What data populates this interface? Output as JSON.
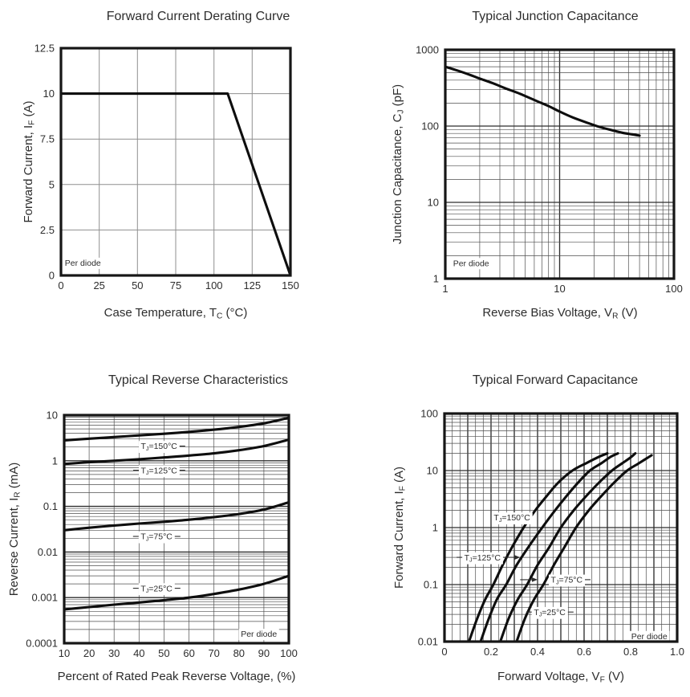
{
  "style": {
    "background": "#ffffff",
    "text_color": "#2d2d2d",
    "curve_color": "#0e0e0e",
    "frame_color": "#161616",
    "grid_minor_color": "#4f4f4f",
    "grid_major_color": "#2e2e2e",
    "grid_light_color": "#8f8f8f",
    "label_bg_color": "#ffffff"
  },
  "chart_data": [
    {
      "type": "line",
      "title": "Forward Current Derating Curve",
      "x_label": [
        [
          "t",
          "Case Temperature, T"
        ],
        [
          "s",
          "C"
        ],
        [
          "t",
          " (°C)"
        ]
      ],
      "y_label": [
        [
          "t",
          "Forward Current, I"
        ],
        [
          "s",
          "F"
        ],
        [
          "t",
          " (A)"
        ]
      ],
      "x_axis": {
        "scale": "linear",
        "min": 0,
        "max": 150,
        "light": true,
        "grid": {
          "major": 25
        },
        "ticks": [
          [
            0,
            "0"
          ],
          [
            25,
            "25"
          ],
          [
            50,
            "50"
          ],
          [
            75,
            "75"
          ],
          [
            100,
            "100"
          ],
          [
            125,
            "125"
          ],
          [
            150,
            "150"
          ]
        ]
      },
      "y_axis": {
        "scale": "linear",
        "min": 0,
        "max": 12.5,
        "light": true,
        "grid": {
          "major": 2.5
        },
        "ticks": [
          [
            12.5,
            "12.5"
          ],
          [
            10,
            "10"
          ],
          [
            7.5,
            "7.5"
          ],
          [
            5,
            "5"
          ],
          [
            2.5,
            "2.5"
          ],
          [
            0,
            "0"
          ]
        ]
      },
      "series": [
        {
          "name": "derating-curve",
          "smooth": false,
          "points": [
            [
              0,
              10
            ],
            [
              109,
              10
            ],
            [
              150,
              0
            ]
          ]
        }
      ],
      "annotations": [
        {
          "name": "per-diode-note",
          "parts": [
            [
              "t",
              "Per diode"
            ]
          ],
          "x": 2.5,
          "y": 0.7,
          "anchor": "start"
        }
      ]
    },
    {
      "type": "line",
      "title": "Typical Junction Capacitance",
      "x_label": [
        [
          "t",
          "Reverse Bias Voltage, V"
        ],
        [
          "s",
          "R"
        ],
        [
          "t",
          " (V)"
        ]
      ],
      "y_label": [
        [
          "t",
          "Junction Capacitance, C"
        ],
        [
          "s",
          "J"
        ],
        [
          "t",
          " (pF)"
        ]
      ],
      "x_axis": {
        "scale": "log",
        "min": 1,
        "max": 100,
        "ticks": [
          [
            1,
            "1"
          ],
          [
            10,
            "10"
          ],
          [
            100,
            "100"
          ]
        ]
      },
      "y_axis": {
        "scale": "log",
        "min": 1,
        "max": 1000,
        "ticks": [
          [
            1000,
            "1000"
          ],
          [
            100,
            "100"
          ],
          [
            10,
            "10"
          ],
          [
            1,
            "1"
          ]
        ]
      },
      "series": [
        {
          "name": "junction-capacitance",
          "smooth": true,
          "points": [
            [
              1,
              600
            ],
            [
              1.3,
              530
            ],
            [
              1.7,
              460
            ],
            [
              2,
              420
            ],
            [
              2.6,
              365
            ],
            [
              3.4,
              310
            ],
            [
              4.5,
              265
            ],
            [
              6,
              220
            ],
            [
              8,
              183
            ],
            [
              10,
              155
            ],
            [
              13,
              130
            ],
            [
              17,
              112
            ],
            [
              22,
              98
            ],
            [
              28,
              89
            ],
            [
              35,
              82
            ],
            [
              43,
              78
            ],
            [
              50,
              75
            ]
          ]
        }
      ],
      "annotations": [
        {
          "name": "per-diode-note",
          "parts": [
            [
              "t",
              "Per diode"
            ]
          ],
          "x": 1.17,
          "y": 1.6,
          "anchor": "start"
        }
      ]
    },
    {
      "type": "line",
      "title": "Typical Reverse Characteristics",
      "x_label": [
        [
          "t",
          "Percent of Rated Peak Reverse Voltage, (%)"
        ]
      ],
      "y_label": [
        [
          "t",
          "Reverse Current, I"
        ],
        [
          "s",
          "R"
        ],
        [
          "t",
          " (mA)"
        ]
      ],
      "x_axis": {
        "scale": "linear",
        "min": 10,
        "max": 100,
        "grid": {
          "major": 10,
          "style": "minor"
        },
        "ticks": [
          [
            10,
            "10"
          ],
          [
            20,
            "20"
          ],
          [
            30,
            "30"
          ],
          [
            40,
            "40"
          ],
          [
            50,
            "50"
          ],
          [
            60,
            "60"
          ],
          [
            70,
            "70"
          ],
          [
            80,
            "80"
          ],
          [
            90,
            "90"
          ],
          [
            100,
            "100"
          ]
        ]
      },
      "y_axis": {
        "scale": "log",
        "min": 0.0001,
        "max": 10,
        "ticks": [
          [
            10,
            "10"
          ],
          [
            1,
            "1"
          ],
          [
            0.1,
            "0.1"
          ],
          [
            0.01,
            "0.01"
          ],
          [
            0.001,
            "0.001"
          ],
          [
            0.0001,
            "0.0001"
          ]
        ]
      },
      "series": [
        {
          "name": "tj-150c",
          "smooth": true,
          "points": [
            [
              10,
              2.8
            ],
            [
              20,
              3.05
            ],
            [
              30,
              3.3
            ],
            [
              40,
              3.6
            ],
            [
              50,
              3.9
            ],
            [
              60,
              4.3
            ],
            [
              70,
              4.8
            ],
            [
              80,
              5.5
            ],
            [
              90,
              6.6
            ],
            [
              100,
              8.8
            ]
          ]
        },
        {
          "name": "tj-125c",
          "smooth": true,
          "points": [
            [
              10,
              0.85
            ],
            [
              20,
              0.93
            ],
            [
              30,
              1.0
            ],
            [
              40,
              1.08
            ],
            [
              50,
              1.18
            ],
            [
              60,
              1.3
            ],
            [
              70,
              1.45
            ],
            [
              80,
              1.7
            ],
            [
              90,
              2.1
            ],
            [
              100,
              2.9
            ]
          ]
        },
        {
          "name": "tj-75c",
          "smooth": true,
          "points": [
            [
              10,
              0.03
            ],
            [
              20,
              0.034
            ],
            [
              30,
              0.038
            ],
            [
              40,
              0.042
            ],
            [
              50,
              0.046
            ],
            [
              60,
              0.051
            ],
            [
              70,
              0.058
            ],
            [
              80,
              0.068
            ],
            [
              90,
              0.085
            ],
            [
              100,
              0.123
            ]
          ]
        },
        {
          "name": "tj-25c",
          "smooth": true,
          "points": [
            [
              10,
              0.00055
            ],
            [
              20,
              0.00062
            ],
            [
              30,
              0.0007
            ],
            [
              40,
              0.00078
            ],
            [
              50,
              0.00088
            ],
            [
              60,
              0.001
            ],
            [
              70,
              0.0012
            ],
            [
              80,
              0.0015
            ],
            [
              90,
              0.002
            ],
            [
              100,
              0.003
            ]
          ]
        }
      ],
      "annotations": [
        {
          "name": "tj-150c-label",
          "parts": [
            [
              "t",
              "T"
            ],
            [
              "s",
              "J"
            ],
            [
              "t",
              "=150°C"
            ]
          ],
          "x": 48,
          "y": 2.1,
          "anchor": "middle",
          "dash_right": true
        },
        {
          "name": "tj-125c-label",
          "parts": [
            [
              "t",
              "T"
            ],
            [
              "s",
              "J"
            ],
            [
              "t",
              "=125°C"
            ]
          ],
          "x": 48,
          "y": 0.62,
          "anchor": "middle",
          "dash_left": true,
          "dash_right": true
        },
        {
          "name": "tj-75c-label",
          "parts": [
            [
              "t",
              "T"
            ],
            [
              "s",
              "J"
            ],
            [
              "t",
              "=75°C"
            ]
          ],
          "x": 47,
          "y": 0.022,
          "anchor": "middle",
          "dash_left": true,
          "dash_right": true
        },
        {
          "name": "tj-25c-label",
          "parts": [
            [
              "t",
              "T"
            ],
            [
              "s",
              "J"
            ],
            [
              "t",
              "=25°C"
            ]
          ],
          "x": 47,
          "y": 0.0016,
          "anchor": "middle",
          "dash_left": true,
          "dash_right": true
        },
        {
          "name": "per-diode-note",
          "parts": [
            [
              "t",
              "Per diode"
            ]
          ],
          "x": 88,
          "y": 0.00016,
          "anchor": "middle"
        }
      ]
    },
    {
      "type": "line",
      "title": "Typical Forward Capacitance",
      "x_label": [
        [
          "t",
          "Forward Voltage, V"
        ],
        [
          "s",
          "F"
        ],
        [
          "t",
          " (V)"
        ]
      ],
      "y_label": [
        [
          "t",
          "Forward Current, I"
        ],
        [
          "s",
          "F"
        ],
        [
          "t",
          " (A)"
        ]
      ],
      "x_axis": {
        "scale": "linear",
        "min": 0,
        "max": 1.0,
        "grid": {
          "major": 0.1,
          "minor": 0.0333333
        },
        "ticks": [
          [
            0,
            "0"
          ],
          [
            0.2,
            "0.2"
          ],
          [
            0.4,
            "0.4"
          ],
          [
            0.6,
            "0.6"
          ],
          [
            0.8,
            "0.8"
          ],
          [
            1.0,
            "1.0"
          ]
        ]
      },
      "y_axis": {
        "scale": "log",
        "min": 0.01,
        "max": 100,
        "ticks": [
          [
            100,
            "100"
          ],
          [
            10,
            "10"
          ],
          [
            1,
            "1"
          ],
          [
            0.1,
            "0.1"
          ],
          [
            0.01,
            "0.01"
          ]
        ]
      },
      "series": [
        {
          "name": "tj-150c",
          "smooth": true,
          "points": [
            [
              0.105,
              0.01
            ],
            [
              0.14,
              0.025
            ],
            [
              0.175,
              0.055
            ],
            [
              0.21,
              0.1
            ],
            [
              0.25,
              0.22
            ],
            [
              0.29,
              0.45
            ],
            [
              0.34,
              1.0
            ],
            [
              0.39,
              2.0
            ],
            [
              0.44,
              3.6
            ],
            [
              0.49,
              6.2
            ],
            [
              0.55,
              10
            ],
            [
              0.61,
              13.5
            ],
            [
              0.665,
              17.5
            ],
            [
              0.7,
              20
            ]
          ]
        },
        {
          "name": "tj-125c",
          "smooth": true,
          "points": [
            [
              0.155,
              0.01
            ],
            [
              0.19,
              0.025
            ],
            [
              0.225,
              0.055
            ],
            [
              0.265,
              0.1
            ],
            [
              0.31,
              0.22
            ],
            [
              0.36,
              0.45
            ],
            [
              0.42,
              1.0
            ],
            [
              0.475,
              2.0
            ],
            [
              0.525,
              3.6
            ],
            [
              0.575,
              6.2
            ],
            [
              0.625,
              10
            ],
            [
              0.675,
              13.5
            ],
            [
              0.715,
              17.5
            ],
            [
              0.745,
              20
            ]
          ]
        },
        {
          "name": "tj-75c",
          "smooth": true,
          "points": [
            [
              0.24,
              0.01
            ],
            [
              0.275,
              0.025
            ],
            [
              0.315,
              0.055
            ],
            [
              0.355,
              0.1
            ],
            [
              0.4,
              0.22
            ],
            [
              0.45,
              0.45
            ],
            [
              0.5,
              1.0
            ],
            [
              0.555,
              2.0
            ],
            [
              0.61,
              3.6
            ],
            [
              0.665,
              6.2
            ],
            [
              0.72,
              10
            ],
            [
              0.765,
              13.5
            ],
            [
              0.8,
              17
            ],
            [
              0.82,
              20
            ]
          ]
        },
        {
          "name": "tj-25c",
          "smooth": true,
          "points": [
            [
              0.31,
              0.01
            ],
            [
              0.345,
              0.025
            ],
            [
              0.385,
              0.055
            ],
            [
              0.425,
              0.1
            ],
            [
              0.47,
              0.22
            ],
            [
              0.515,
              0.45
            ],
            [
              0.565,
              1.0
            ],
            [
              0.62,
              2.0
            ],
            [
              0.675,
              3.6
            ],
            [
              0.73,
              6.2
            ],
            [
              0.785,
              10
            ],
            [
              0.83,
              13
            ],
            [
              0.865,
              16
            ],
            [
              0.89,
              18.5
            ]
          ]
        }
      ],
      "annotations": [
        {
          "name": "tj-150c-label",
          "parts": [
            [
              "t",
              "T"
            ],
            [
              "s",
              "J"
            ],
            [
              "t",
              "=150°C"
            ]
          ],
          "x": 0.29,
          "y": 1.5,
          "anchor": "middle"
        },
        {
          "name": "tj-125c-label",
          "parts": [
            [
              "t",
              "T"
            ],
            [
              "s",
              "J"
            ],
            [
              "t",
              "=125°C"
            ]
          ],
          "x": 0.163,
          "y": 0.3,
          "anchor": "middle",
          "dash_left": true,
          "arrows": [
            [
              0.252,
              0.325
            ]
          ]
        },
        {
          "name": "tj-75c-label",
          "parts": [
            [
              "t",
              "T"
            ],
            [
              "s",
              "J"
            ],
            [
              "t",
              "=75°C"
            ]
          ],
          "x": 0.525,
          "y": 0.122,
          "anchor": "middle",
          "dash_right": true,
          "arrows": [
            [
              0.325,
              0.4
            ]
          ]
        },
        {
          "name": "tj-25c-label",
          "parts": [
            [
              "t",
              "T"
            ],
            [
              "s",
              "J"
            ],
            [
              "t",
              "=25°C"
            ]
          ],
          "x": 0.452,
          "y": 0.033,
          "anchor": "middle",
          "dash_left": true,
          "dash_right": true
        },
        {
          "name": "per-diode-note",
          "parts": [
            [
              "t",
              "Per diode"
            ]
          ],
          "x": 0.88,
          "y": 0.0125,
          "anchor": "middle"
        }
      ]
    }
  ]
}
